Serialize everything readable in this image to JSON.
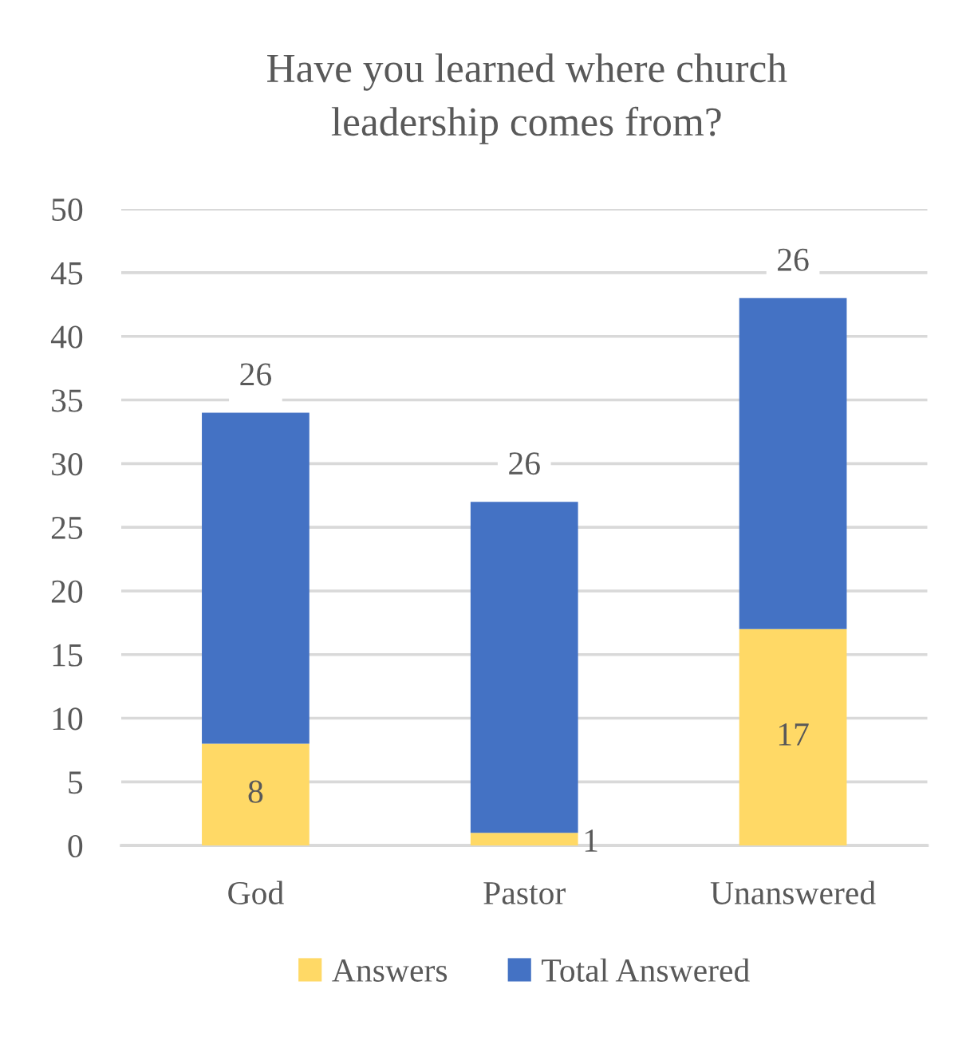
{
  "chart_data": {
    "type": "bar",
    "title": "Have you learned where church leadership comes from?",
    "categories": [
      "God",
      "Pastor",
      "Unanswered"
    ],
    "series": [
      {
        "name": "Answers",
        "color": "#ffd966",
        "values": [
          8,
          1,
          17
        ]
      },
      {
        "name": "Total Answered",
        "color": "#4472c4",
        "values": [
          26,
          26,
          26
        ]
      }
    ],
    "stacked": true,
    "data_labels": true,
    "ylim": [
      0,
      50
    ],
    "yticks": [
      0,
      5,
      10,
      15,
      20,
      25,
      30,
      35,
      40,
      45,
      50
    ],
    "grid": "y",
    "legend": "bottom"
  }
}
